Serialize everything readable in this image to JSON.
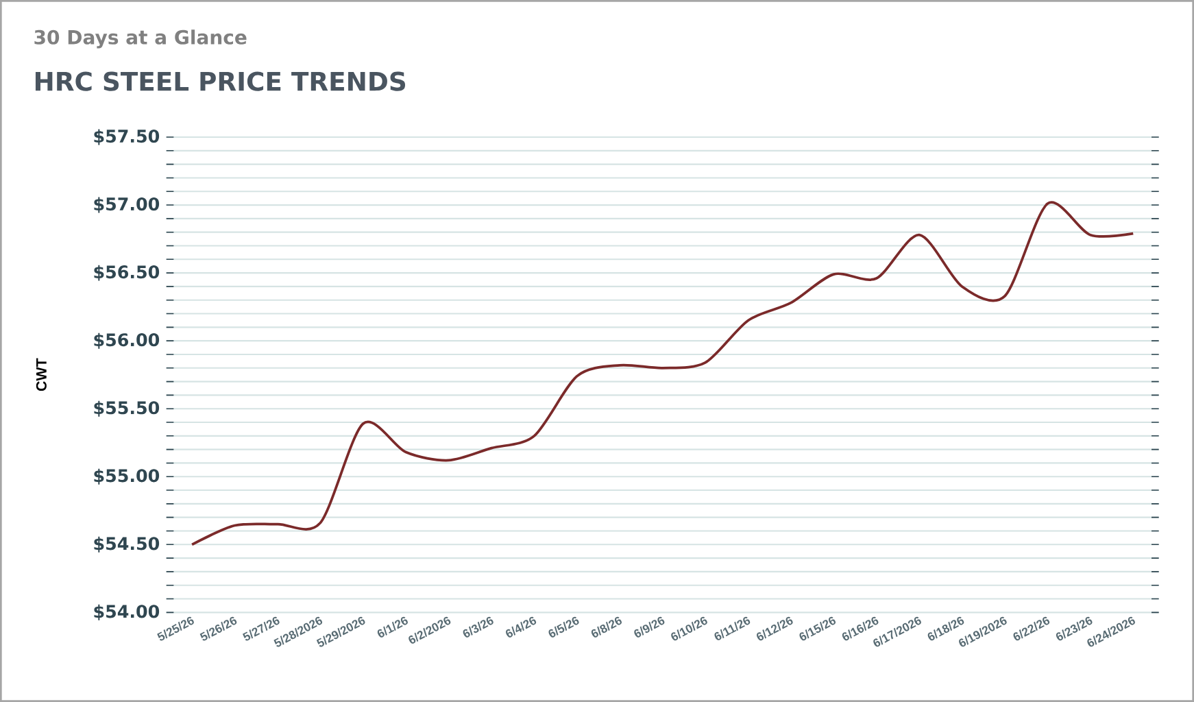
{
  "chart_data": {
    "type": "line",
    "subtitle": "30 Days at a Glance",
    "title": "HRC STEEL PRICE TRENDS",
    "ylabel": "CWT",
    "categories": [
      "5/25/26",
      "5/26/26",
      "5/27/26",
      "5/28/2026",
      "5/29/2026",
      "6/1/26",
      "6/2/2026",
      "6/3/26",
      "6/4/26",
      "6/5/26",
      "6/8/26",
      "6/9/26",
      "6/10/26",
      "6/11/26",
      "6/12/26",
      "6/15/26",
      "6/16/26",
      "6/17/2026",
      "6/18/26",
      "6/19/2026",
      "6/22/26",
      "6/23/26",
      "6/24/2026"
    ],
    "values": [
      54.5,
      54.64,
      54.65,
      54.66,
      55.39,
      55.18,
      55.12,
      55.21,
      55.3,
      55.74,
      55.82,
      55.8,
      55.84,
      56.15,
      56.28,
      56.49,
      56.46,
      56.78,
      56.4,
      56.33,
      57.01,
      56.78,
      56.79
    ],
    "color": "#7b2a2a",
    "ylim": [
      54.0,
      57.5
    ],
    "yticks": [
      {
        "value": 54.0,
        "label": "$54.00"
      },
      {
        "value": 54.1,
        "label": null
      },
      {
        "value": 54.2,
        "label": null
      },
      {
        "value": 54.3,
        "label": null
      },
      {
        "value": 54.4,
        "label": null
      },
      {
        "value": 54.5,
        "label": "$54.50"
      },
      {
        "value": 54.6,
        "label": null
      },
      {
        "value": 54.7,
        "label": null
      },
      {
        "value": 54.8,
        "label": null
      },
      {
        "value": 54.9,
        "label": null
      },
      {
        "value": 55.0,
        "label": "$55.00"
      },
      {
        "value": 55.1,
        "label": null
      },
      {
        "value": 55.2,
        "label": null
      },
      {
        "value": 55.3,
        "label": null
      },
      {
        "value": 55.4,
        "label": null
      },
      {
        "value": 55.5,
        "label": "$55.50"
      },
      {
        "value": 55.6,
        "label": null
      },
      {
        "value": 55.7,
        "label": null
      },
      {
        "value": 55.8,
        "label": null
      },
      {
        "value": 55.9,
        "label": null
      },
      {
        "value": 56.0,
        "label": "$56.00"
      },
      {
        "value": 56.1,
        "label": null
      },
      {
        "value": 56.2,
        "label": null
      },
      {
        "value": 56.3,
        "label": null
      },
      {
        "value": 56.4,
        "label": null
      },
      {
        "value": 56.5,
        "label": "$56.50"
      },
      {
        "value": 56.6,
        "label": null
      },
      {
        "value": 56.7,
        "label": null
      },
      {
        "value": 56.8,
        "label": null
      },
      {
        "value": 56.9,
        "label": null
      },
      {
        "value": 57.0,
        "label": "$57.00"
      },
      {
        "value": 57.1,
        "label": null
      },
      {
        "value": 57.2,
        "label": null
      },
      {
        "value": 57.3,
        "label": null
      },
      {
        "value": 57.4,
        "label": null
      },
      {
        "value": 57.5,
        "label": "$57.50"
      }
    ],
    "grid": "y",
    "line_style": "solid"
  }
}
